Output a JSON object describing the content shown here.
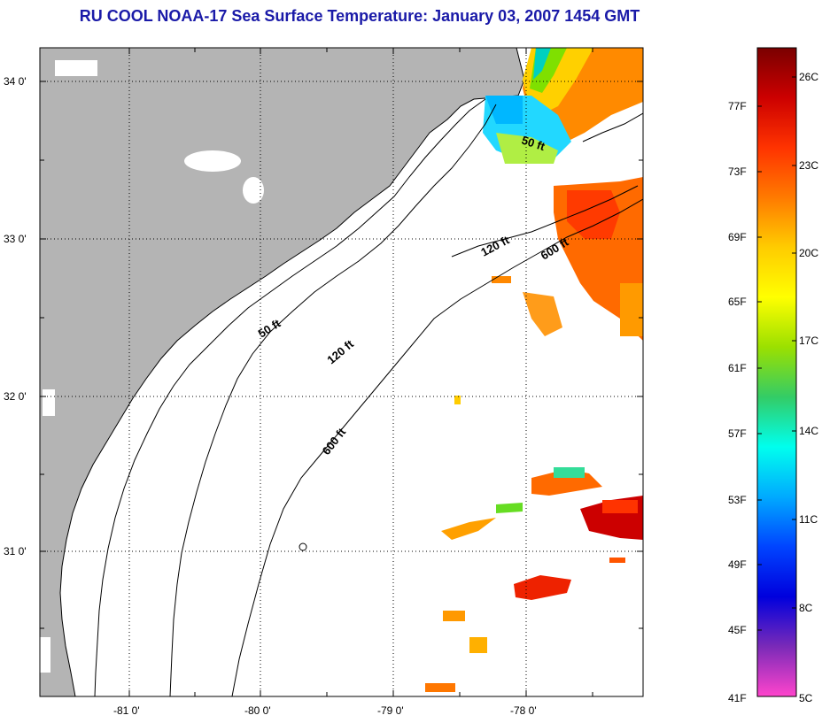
{
  "title": "RU COOL  NOAA-17  Sea Surface Temperature:  January 03, 2007 1454 GMT",
  "map": {
    "lat_ticks": [
      "34 0'",
      "33 0'",
      "32 0'",
      "31 0'"
    ],
    "lon_ticks": [
      "-81 0'",
      "-80 0'",
      "-79 0'",
      "-78 0'"
    ],
    "contour_labels": [
      "50 ft",
      "50 ft",
      "120 ft",
      "120 ft",
      "600 ft",
      "600 ft"
    ],
    "colors": {
      "land": "#b4b4b4",
      "ocean": "#ffffff",
      "coast": "#000000"
    }
  },
  "colorbar": {
    "f_labels": [
      "77F",
      "73F",
      "69F",
      "65F",
      "61F",
      "57F",
      "53F",
      "49F",
      "45F",
      "41F"
    ],
    "c_labels": [
      "26C",
      "23C",
      "20C",
      "17C",
      "14C",
      "11C",
      "8C",
      "5C"
    ],
    "gradient_stops": [
      "#7a0000",
      "#cc0000",
      "#ff3300",
      "#ff7a00",
      "#ffcc00",
      "#ffff00",
      "#9be000",
      "#33cc66",
      "#00ffee",
      "#00aaff",
      "#0044ff",
      "#0000dd",
      "#7a2ab8",
      "#ff44cc"
    ]
  }
}
